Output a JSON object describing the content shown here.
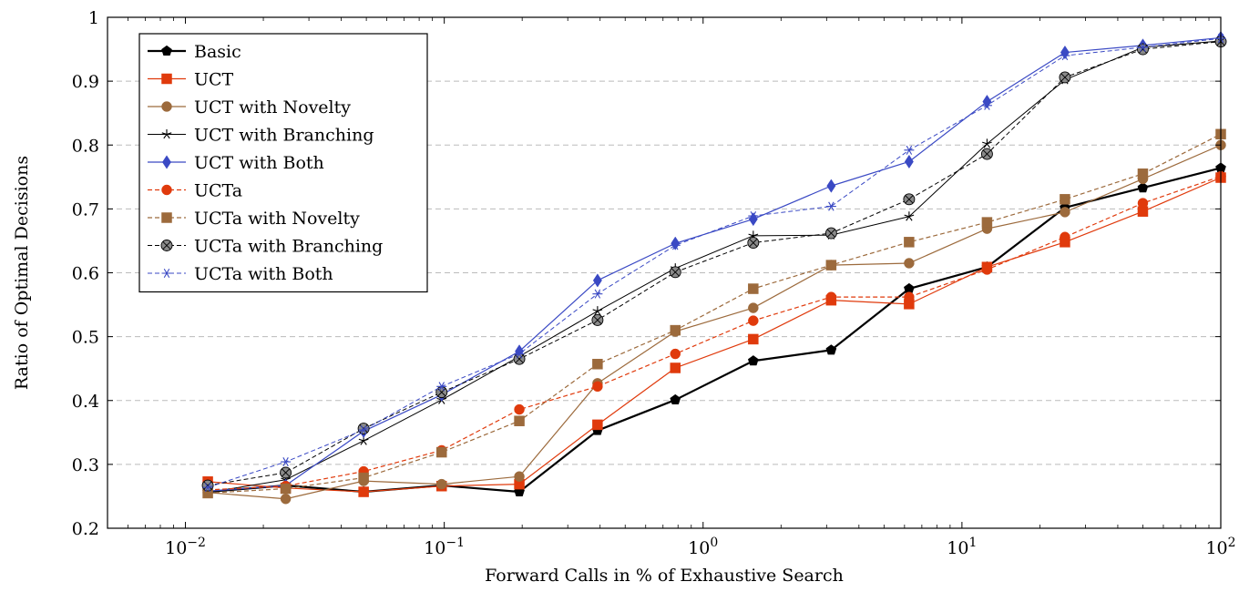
{
  "chart_data": {
    "type": "line",
    "title": "",
    "xlabel": "Forward Calls in % of Exhaustive Search",
    "ylabel": "Ratio of Optimal Decisions",
    "x_scale": "log",
    "xlim": [
      0.005,
      100
    ],
    "ylim": [
      0.2,
      1
    ],
    "x_ticks": [
      {
        "value": 0.01,
        "base": "10",
        "exp": "−2"
      },
      {
        "value": 0.1,
        "base": "10",
        "exp": "−1"
      },
      {
        "value": 1,
        "base": "10",
        "exp": "0"
      },
      {
        "value": 10,
        "base": "10",
        "exp": "1"
      },
      {
        "value": 100,
        "base": "10",
        "exp": "2"
      }
    ],
    "y_ticks": [
      "0.2",
      "0.3",
      "0.4",
      "0.5",
      "0.6",
      "0.7",
      "0.8",
      "0.9",
      "1"
    ],
    "grid": "horizontal dashed",
    "legend_position": "top-left",
    "x": [
      0.0122,
      0.0244,
      0.0488,
      0.0977,
      0.195,
      0.391,
      0.781,
      1.5625,
      3.125,
      6.25,
      12.5,
      25,
      50,
      100
    ],
    "series": [
      {
        "name": "Basic",
        "color": "#000000",
        "dash": "solid",
        "width": 2.2,
        "marker": "pentagon",
        "values": [
          0.257,
          0.267,
          0.257,
          0.267,
          0.257,
          0.353,
          0.401,
          0.462,
          0.479,
          0.575,
          0.609,
          0.702,
          0.733,
          0.764
        ]
      },
      {
        "name": "UCT",
        "color": "#e03a0c",
        "dash": "solid",
        "width": 1.2,
        "marker": "square",
        "values": [
          0.273,
          0.263,
          0.257,
          0.266,
          0.269,
          0.362,
          0.451,
          0.496,
          0.557,
          0.551,
          0.609,
          0.648,
          0.696,
          0.749
        ]
      },
      {
        "name": "UCT with Novelty",
        "color": "#9c6a3c",
        "dash": "solid",
        "width": 1.2,
        "marker": "circle",
        "values": [
          0.256,
          0.246,
          0.274,
          0.269,
          0.281,
          0.427,
          0.508,
          0.545,
          0.612,
          0.615,
          0.669,
          0.695,
          0.747,
          0.8
        ]
      },
      {
        "name": "UCT with Branching",
        "color": "#000000",
        "dash": "solid",
        "width": 1.0,
        "marker": "star",
        "values": [
          0.256,
          0.276,
          0.337,
          0.401,
          0.469,
          0.54,
          0.607,
          0.658,
          0.659,
          0.688,
          0.802,
          0.902,
          0.953,
          0.963
        ]
      },
      {
        "name": "UCT with Both",
        "color": "#3a49c4",
        "dash": "solid",
        "width": 1.2,
        "marker": "diamond",
        "values": [
          0.258,
          0.267,
          0.352,
          0.409,
          0.477,
          0.588,
          0.646,
          0.684,
          0.736,
          0.774,
          0.868,
          0.945,
          0.956,
          0.968
        ]
      },
      {
        "name": "UCTa",
        "color": "#e03a0c",
        "dash": "dashed",
        "width": 1.2,
        "marker": "circle",
        "values": [
          0.26,
          0.266,
          0.289,
          0.322,
          0.386,
          0.422,
          0.473,
          0.525,
          0.562,
          0.562,
          0.605,
          0.656,
          0.709,
          0.751
        ]
      },
      {
        "name": "UCTa with Novelty",
        "color": "#9c6a3c",
        "dash": "dashed",
        "width": 1.2,
        "marker": "square",
        "values": [
          0.255,
          0.262,
          0.279,
          0.319,
          0.368,
          0.457,
          0.51,
          0.575,
          0.612,
          0.648,
          0.679,
          0.715,
          0.755,
          0.817
        ]
      },
      {
        "name": "UCTa with Branching",
        "color": "#000000",
        "dash": "dashed",
        "width": 1.0,
        "marker": "otimes",
        "values": [
          0.267,
          0.287,
          0.356,
          0.413,
          0.465,
          0.526,
          0.601,
          0.647,
          0.662,
          0.715,
          0.786,
          0.906,
          0.95,
          0.962
        ]
      },
      {
        "name": "UCTa with Both",
        "color": "#3a49c4",
        "dash": "dashed",
        "width": 1.0,
        "marker": "asterisk",
        "values": [
          0.264,
          0.304,
          0.354,
          0.422,
          0.473,
          0.567,
          0.643,
          0.689,
          0.704,
          0.792,
          0.862,
          0.94,
          0.953,
          0.967
        ]
      }
    ]
  }
}
